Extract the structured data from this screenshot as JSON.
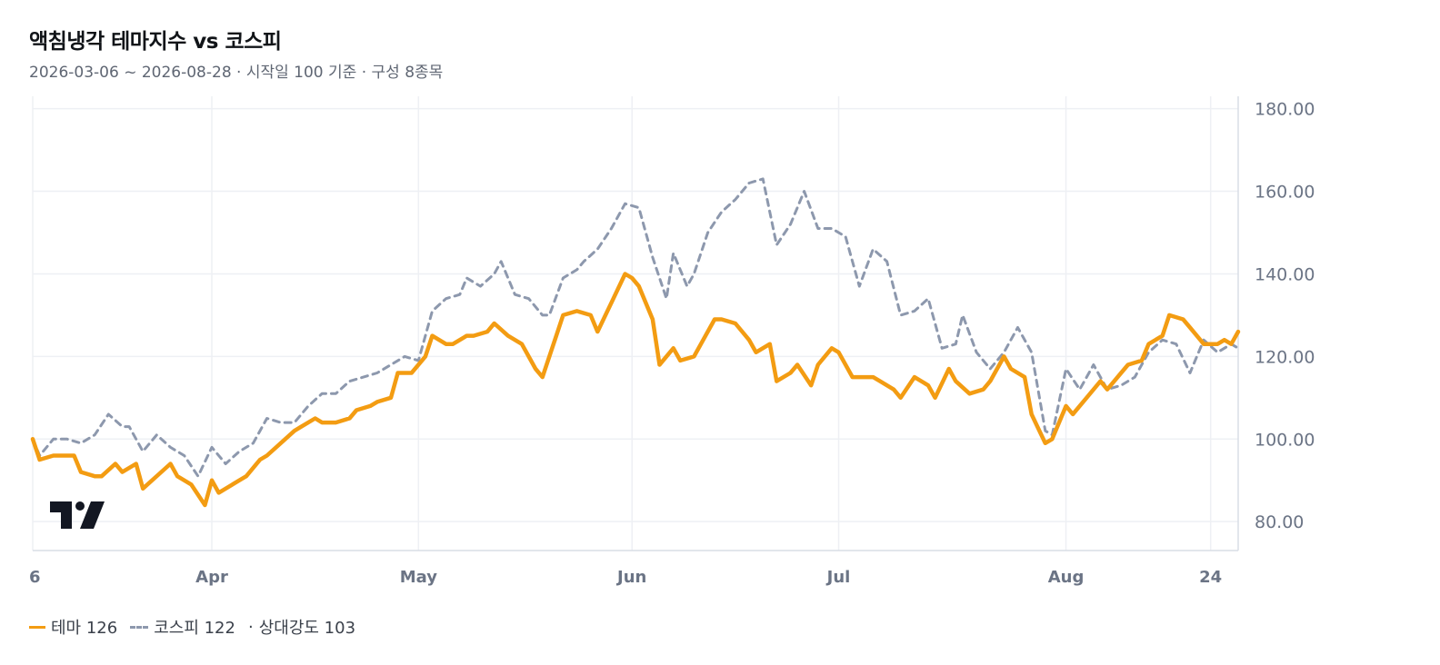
{
  "header": {
    "title": "액침냉각 테마지수 vs 코스피",
    "subtitle": "2026-03-06 ~ 2026-08-28 · 시작일 100 기준 · 구성 8종목"
  },
  "legend": {
    "theme_label": "테마 126",
    "kospi_label": "코스피 122",
    "relative_dot": "·",
    "relative_label": "상대강도 103"
  },
  "colors": {
    "theme": "#f39c12",
    "kospi": "#8d98ad",
    "grid": "#eef0f4",
    "axis_text": "#6b7485"
  },
  "logo_icon": "tradingview-logo-icon",
  "chart_data": {
    "type": "line",
    "x_start": "2026-03-06",
    "x_end": "2026-08-28",
    "ylim": [
      73,
      183
    ],
    "y_ticks": [
      80,
      100,
      120,
      140,
      160,
      180
    ],
    "y_tick_labels": [
      "80.00",
      "100.00",
      "120.00",
      "140.00",
      "160.00",
      "180.00"
    ],
    "x_ticks": [
      {
        "date": "2026-03-06",
        "label": "6"
      },
      {
        "date": "2026-04-01",
        "label": "Apr"
      },
      {
        "date": "2026-05-01",
        "label": "May"
      },
      {
        "date": "2026-06-01",
        "label": "Jun"
      },
      {
        "date": "2026-07-01",
        "label": "Jul"
      },
      {
        "date": "2026-08-03",
        "label": "Aug"
      },
      {
        "date": "2026-08-24",
        "label": "24"
      }
    ],
    "grid": true,
    "y_axis_position": "right",
    "series": [
      {
        "name": "테마",
        "style": "solid",
        "points": [
          [
            "2026-03-06",
            100
          ],
          [
            "2026-03-07",
            95
          ],
          [
            "2026-03-09",
            96
          ],
          [
            "2026-03-10",
            96
          ],
          [
            "2026-03-12",
            96
          ],
          [
            "2026-03-13",
            92
          ],
          [
            "2026-03-15",
            91
          ],
          [
            "2026-03-16",
            91
          ],
          [
            "2026-03-18",
            94
          ],
          [
            "2026-03-19",
            92
          ],
          [
            "2026-03-21",
            94
          ],
          [
            "2026-03-22",
            88
          ],
          [
            "2026-03-26",
            94
          ],
          [
            "2026-03-27",
            91
          ],
          [
            "2026-03-29",
            89
          ],
          [
            "2026-03-31",
            84
          ],
          [
            "2026-04-01",
            90
          ],
          [
            "2026-04-02",
            87
          ],
          [
            "2026-04-05",
            90
          ],
          [
            "2026-04-06",
            91
          ],
          [
            "2026-04-08",
            95
          ],
          [
            "2026-04-09",
            96
          ],
          [
            "2026-04-11",
            99
          ],
          [
            "2026-04-13",
            102
          ],
          [
            "2026-04-14",
            103
          ],
          [
            "2026-04-16",
            105
          ],
          [
            "2026-04-17",
            104
          ],
          [
            "2026-04-19",
            104
          ],
          [
            "2026-04-21",
            105
          ],
          [
            "2026-04-22",
            107
          ],
          [
            "2026-04-24",
            108
          ],
          [
            "2026-04-25",
            109
          ],
          [
            "2026-04-27",
            110
          ],
          [
            "2026-04-28",
            116
          ],
          [
            "2026-04-30",
            116
          ],
          [
            "2026-05-02",
            120
          ],
          [
            "2026-05-03",
            125
          ],
          [
            "2026-05-05",
            123
          ],
          [
            "2026-05-06",
            123
          ],
          [
            "2026-05-08",
            125
          ],
          [
            "2026-05-09",
            125
          ],
          [
            "2026-05-11",
            126
          ],
          [
            "2026-05-12",
            128
          ],
          [
            "2026-05-14",
            125
          ],
          [
            "2026-05-16",
            123
          ],
          [
            "2026-05-18",
            117
          ],
          [
            "2026-05-19",
            115
          ],
          [
            "2026-05-21",
            125
          ],
          [
            "2026-05-22",
            130
          ],
          [
            "2026-05-24",
            131
          ],
          [
            "2026-05-26",
            130
          ],
          [
            "2026-05-27",
            126
          ],
          [
            "2026-05-29",
            133
          ],
          [
            "2026-05-31",
            140
          ],
          [
            "2026-06-01",
            139
          ],
          [
            "2026-06-02",
            137
          ],
          [
            "2026-06-04",
            129
          ],
          [
            "2026-06-05",
            118
          ],
          [
            "2026-06-07",
            122
          ],
          [
            "2026-06-08",
            119
          ],
          [
            "2026-06-10",
            120
          ],
          [
            "2026-06-11",
            123
          ],
          [
            "2026-06-13",
            129
          ],
          [
            "2026-06-14",
            129
          ],
          [
            "2026-06-16",
            128
          ],
          [
            "2026-06-18",
            124
          ],
          [
            "2026-06-19",
            121
          ],
          [
            "2026-06-21",
            123
          ],
          [
            "2026-06-22",
            114
          ],
          [
            "2026-06-24",
            116
          ],
          [
            "2026-06-25",
            118
          ],
          [
            "2026-06-27",
            113
          ],
          [
            "2026-06-28",
            118
          ],
          [
            "2026-06-30",
            122
          ],
          [
            "2026-07-01",
            121
          ],
          [
            "2026-07-03",
            115
          ],
          [
            "2026-07-04",
            115
          ],
          [
            "2026-07-06",
            115
          ],
          [
            "2026-07-07",
            114
          ],
          [
            "2026-07-09",
            112
          ],
          [
            "2026-07-10",
            110
          ],
          [
            "2026-07-12",
            115
          ],
          [
            "2026-07-14",
            113
          ],
          [
            "2026-07-15",
            110
          ],
          [
            "2026-07-17",
            117
          ],
          [
            "2026-07-18",
            114
          ],
          [
            "2026-07-20",
            111
          ],
          [
            "2026-07-22",
            112
          ],
          [
            "2026-07-23",
            114
          ],
          [
            "2026-07-25",
            120
          ],
          [
            "2026-07-26",
            117
          ],
          [
            "2026-07-28",
            115
          ],
          [
            "2026-07-29",
            106
          ],
          [
            "2026-07-31",
            99
          ],
          [
            "2026-08-01",
            100
          ],
          [
            "2026-08-03",
            108
          ],
          [
            "2026-08-04",
            106
          ],
          [
            "2026-08-06",
            110
          ],
          [
            "2026-08-08",
            114
          ],
          [
            "2026-08-09",
            112
          ],
          [
            "2026-08-11",
            116
          ],
          [
            "2026-08-12",
            118
          ],
          [
            "2026-08-14",
            119
          ],
          [
            "2026-08-15",
            123
          ],
          [
            "2026-08-17",
            125
          ],
          [
            "2026-08-18",
            130
          ],
          [
            "2026-08-20",
            129
          ],
          [
            "2026-08-21",
            127
          ],
          [
            "2026-08-23",
            123
          ],
          [
            "2026-08-25",
            123
          ],
          [
            "2026-08-26",
            124
          ],
          [
            "2026-08-27",
            123
          ],
          [
            "2026-08-28",
            126
          ]
        ]
      },
      {
        "name": "코스피",
        "style": "dashed",
        "points": [
          [
            "2026-03-06",
            100
          ],
          [
            "2026-03-07",
            96
          ],
          [
            "2026-03-09",
            100
          ],
          [
            "2026-03-11",
            100
          ],
          [
            "2026-03-13",
            99
          ],
          [
            "2026-03-15",
            101
          ],
          [
            "2026-03-17",
            106
          ],
          [
            "2026-03-19",
            103
          ],
          [
            "2026-03-20",
            103
          ],
          [
            "2026-03-22",
            97
          ],
          [
            "2026-03-24",
            101
          ],
          [
            "2026-03-26",
            98
          ],
          [
            "2026-03-28",
            96
          ],
          [
            "2026-03-30",
            91
          ],
          [
            "2026-04-01",
            98
          ],
          [
            "2026-04-03",
            94
          ],
          [
            "2026-04-05",
            97
          ],
          [
            "2026-04-07",
            99
          ],
          [
            "2026-04-09",
            105
          ],
          [
            "2026-04-11",
            104
          ],
          [
            "2026-04-13",
            104
          ],
          [
            "2026-04-15",
            108
          ],
          [
            "2026-04-17",
            111
          ],
          [
            "2026-04-19",
            111
          ],
          [
            "2026-04-21",
            114
          ],
          [
            "2026-04-23",
            115
          ],
          [
            "2026-04-25",
            116
          ],
          [
            "2026-04-27",
            118
          ],
          [
            "2026-04-29",
            120
          ],
          [
            "2026-05-01",
            119
          ],
          [
            "2026-05-03",
            131
          ],
          [
            "2026-05-05",
            134
          ],
          [
            "2026-05-07",
            135
          ],
          [
            "2026-05-08",
            139
          ],
          [
            "2026-05-10",
            137
          ],
          [
            "2026-05-12",
            140
          ],
          [
            "2026-05-13",
            143
          ],
          [
            "2026-05-15",
            135
          ],
          [
            "2026-05-17",
            134
          ],
          [
            "2026-05-19",
            130
          ],
          [
            "2026-05-20",
            130
          ],
          [
            "2026-05-22",
            139
          ],
          [
            "2026-05-24",
            141
          ],
          [
            "2026-05-25",
            143
          ],
          [
            "2026-05-27",
            146
          ],
          [
            "2026-05-29",
            151
          ],
          [
            "2026-05-31",
            157
          ],
          [
            "2026-06-02",
            156
          ],
          [
            "2026-06-04",
            144
          ],
          [
            "2026-06-06",
            134
          ],
          [
            "2026-06-07",
            145
          ],
          [
            "2026-06-09",
            137
          ],
          [
            "2026-06-10",
            140
          ],
          [
            "2026-06-12",
            150
          ],
          [
            "2026-06-14",
            155
          ],
          [
            "2026-06-16",
            158
          ],
          [
            "2026-06-18",
            162
          ],
          [
            "2026-06-20",
            163
          ],
          [
            "2026-06-22",
            147
          ],
          [
            "2026-06-24",
            152
          ],
          [
            "2026-06-26",
            160
          ],
          [
            "2026-06-28",
            151
          ],
          [
            "2026-06-30",
            151
          ],
          [
            "2026-07-02",
            149
          ],
          [
            "2026-07-04",
            137
          ],
          [
            "2026-07-06",
            146
          ],
          [
            "2026-07-08",
            143
          ],
          [
            "2026-07-10",
            130
          ],
          [
            "2026-07-12",
            131
          ],
          [
            "2026-07-14",
            134
          ],
          [
            "2026-07-16",
            122
          ],
          [
            "2026-07-18",
            123
          ],
          [
            "2026-07-19",
            130
          ],
          [
            "2026-07-21",
            121
          ],
          [
            "2026-07-23",
            117
          ],
          [
            "2026-07-25",
            121
          ],
          [
            "2026-07-27",
            127
          ],
          [
            "2026-07-29",
            121
          ],
          [
            "2026-07-31",
            102
          ],
          [
            "2026-08-01",
            101
          ],
          [
            "2026-08-03",
            117
          ],
          [
            "2026-08-05",
            112
          ],
          [
            "2026-08-07",
            118
          ],
          [
            "2026-08-09",
            112
          ],
          [
            "2026-08-11",
            113
          ],
          [
            "2026-08-13",
            115
          ],
          [
            "2026-08-15",
            121
          ],
          [
            "2026-08-17",
            124
          ],
          [
            "2026-08-19",
            123
          ],
          [
            "2026-08-21",
            116
          ],
          [
            "2026-08-23",
            124
          ],
          [
            "2026-08-25",
            121
          ],
          [
            "2026-08-27",
            123
          ],
          [
            "2026-08-28",
            122
          ]
        ]
      }
    ]
  }
}
